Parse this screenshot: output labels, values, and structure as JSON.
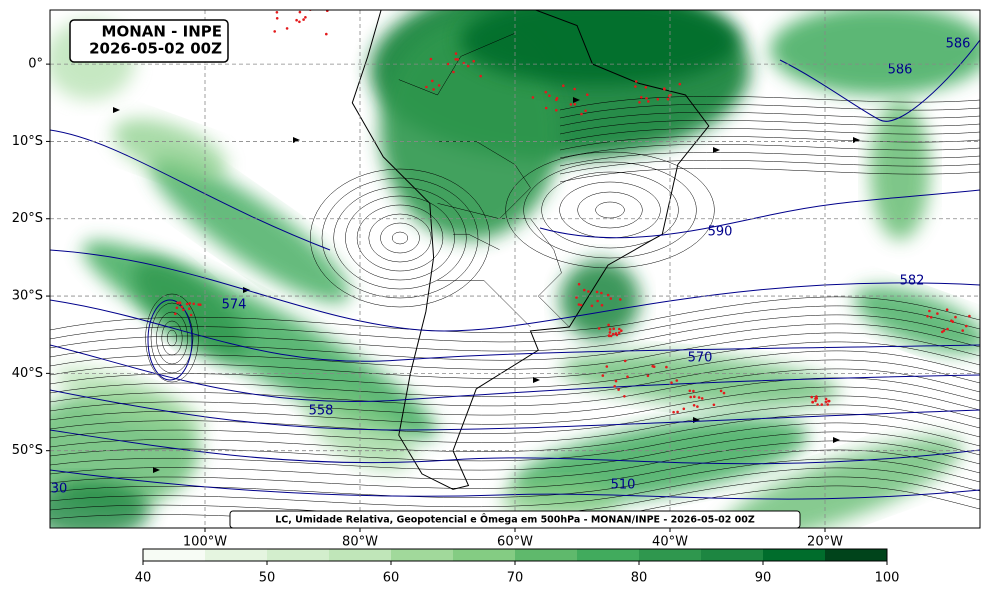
{
  "title": {
    "line1": "MONAN - INPE",
    "line2": "2026-05-02 00Z"
  },
  "caption": "LC, Umidade Relativa, Geopotencial e Ômega em 500hPa - MONAN/INPE - 2026-05-02 00Z",
  "map": {
    "xlim": [
      -120,
      0
    ],
    "ylim": [
      -60,
      7
    ],
    "xticks": [
      {
        "value": -100,
        "label": "100°W"
      },
      {
        "value": -80,
        "label": "80°W"
      },
      {
        "value": -60,
        "label": "60°W"
      },
      {
        "value": -40,
        "label": "40°W"
      },
      {
        "value": -20,
        "label": "20°W"
      }
    ],
    "yticks": [
      {
        "value": 0,
        "label": "0°"
      },
      {
        "value": -10,
        "label": "10°S"
      },
      {
        "value": -20,
        "label": "20°S"
      },
      {
        "value": -30,
        "label": "30°S"
      },
      {
        "value": -40,
        "label": "40°S"
      },
      {
        "value": -50,
        "label": "50°S"
      }
    ],
    "grid": true,
    "contour_color": "#00008b",
    "contour_labels": [
      590,
      582,
      586,
      586,
      574,
      570,
      558,
      510,
      30
    ]
  },
  "colorbar": {
    "lim": [
      40,
      100
    ],
    "ticks": [
      40,
      50,
      60,
      70,
      80,
      90,
      100
    ],
    "colors": [
      "#f7fcf5",
      "#e5f5e0",
      "#d3eecd",
      "#c0e6b9",
      "#a1d99b",
      "#84cc83",
      "#5fb96c",
      "#41ab5d",
      "#2f974e",
      "#1d8641",
      "#006d2c",
      "#00441b"
    ]
  }
}
